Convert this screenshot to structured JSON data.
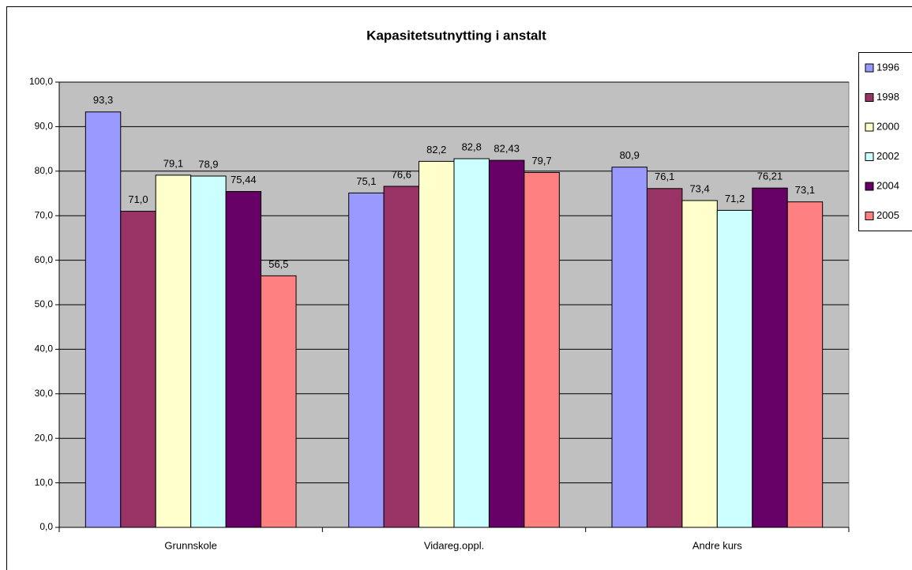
{
  "chart_data": {
    "type": "bar",
    "title": "Kapasitetsutnytting i anstalt",
    "categories": [
      "Grunnskole",
      "Vidareg.oppl.",
      "Andre kurs"
    ],
    "series": [
      {
        "name": "1996",
        "color": "#9999ff",
        "values": [
          93.3,
          75.1,
          80.9
        ],
        "value_labels": [
          "93,3",
          "75,1",
          "80,9"
        ]
      },
      {
        "name": "1998",
        "color": "#993366",
        "values": [
          71.0,
          76.6,
          76.1
        ],
        "value_labels": [
          "71,0",
          "76,6",
          "76,1"
        ]
      },
      {
        "name": "2000",
        "color": "#ffffcc",
        "values": [
          79.1,
          82.2,
          73.4
        ],
        "value_labels": [
          "79,1",
          "82,2",
          "73,4"
        ]
      },
      {
        "name": "2002",
        "color": "#ccffff",
        "values": [
          78.9,
          82.8,
          71.2
        ],
        "value_labels": [
          "78,9",
          "82,8",
          "71,2"
        ]
      },
      {
        "name": "2004",
        "color": "#660066",
        "values": [
          75.44,
          82.43,
          76.21
        ],
        "value_labels": [
          "75,44",
          "82,43",
          "76,21"
        ]
      },
      {
        "name": "2005",
        "color": "#ff8080",
        "values": [
          56.5,
          79.7,
          73.1
        ],
        "value_labels": [
          "56,5",
          "79,7",
          "73,1"
        ]
      }
    ],
    "ylim": [
      0,
      100
    ],
    "yticks": [
      {
        "value": 0,
        "label": "0,0"
      },
      {
        "value": 10,
        "label": "10,0"
      },
      {
        "value": 20,
        "label": "20,0"
      },
      {
        "value": 30,
        "label": "30,0"
      },
      {
        "value": 40,
        "label": "40,0"
      },
      {
        "value": 50,
        "label": "50,0"
      },
      {
        "value": 60,
        "label": "60,0"
      },
      {
        "value": 70,
        "label": "70,0"
      },
      {
        "value": 80,
        "label": "80,0"
      },
      {
        "value": 90,
        "label": "90,0"
      },
      {
        "value": 100,
        "label": "100,0"
      }
    ],
    "grid": true,
    "legend": "right",
    "plot_background": "#c0c0c0"
  }
}
